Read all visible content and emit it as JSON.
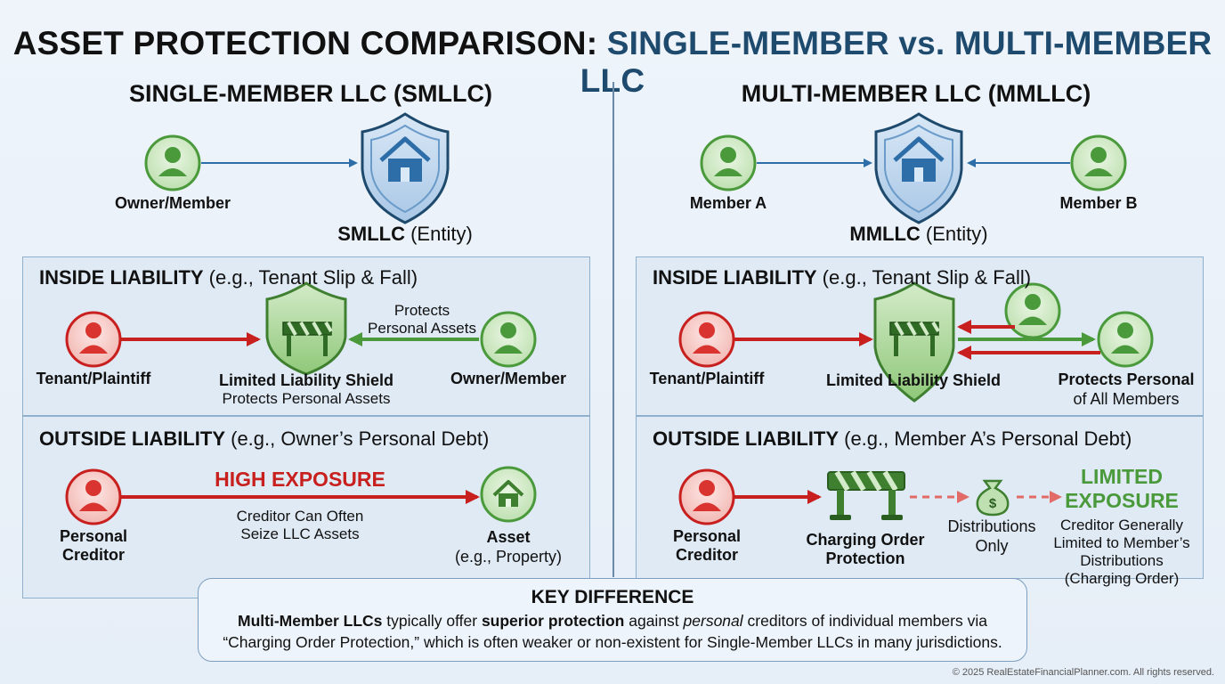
{
  "title": {
    "part1": "ASSET PROTECTION COMPARISON:",
    "part2": "SINGLE-MEMBER vs. MULTI-MEMBER LLC"
  },
  "smllc": {
    "heading": "SINGLE-MEMBER LLC (SMLLC)",
    "owner_label": "Owner/Member",
    "entity_bold": "SMLLC",
    "entity_rest": " (Entity)",
    "inside": {
      "title_bold": "INSIDE LIABILITY",
      "title_rest": " (e.g., Tenant Slip & Fall)",
      "plaintiff_label": "Tenant/Plaintiff",
      "shield_label": "Limited Liability Shield",
      "shield_sub": "Protects Personal Assets",
      "owner_label": "Owner/Member",
      "arrow_note_line1": "Protects",
      "arrow_note_line2": "Personal Assets"
    },
    "outside": {
      "title_bold": "OUTSIDE LIABILITY",
      "title_rest": " (e.g., Owner’s Personal Debt)",
      "creditor_line1": "Personal",
      "creditor_line2": "Creditor",
      "exposure": "HIGH EXPOSURE",
      "note_line1": "Creditor Can Often",
      "note_line2": "Seize LLC Assets",
      "asset_label": "Asset",
      "asset_sub": "(e.g., Property)"
    }
  },
  "mmllc": {
    "heading": "MULTI-MEMBER LLC (MMLLC)",
    "member_a": "Member A",
    "member_b": "Member B",
    "entity_bold": "MMLLC",
    "entity_rest": " (Entity)",
    "inside": {
      "title_bold": "INSIDE LIABILITY",
      "title_rest": " (e.g., Tenant Slip & Fall)",
      "plaintiff_label": "Tenant/Plaintiff",
      "shield_label": "Limited Liability Shield",
      "protects_line1": "Protects Personal",
      "protects_line2": "of All Members"
    },
    "outside": {
      "title_bold": "OUTSIDE LIABILITY",
      "title_rest": " (e.g., Member A’s Personal Debt)",
      "creditor_line1": "Personal",
      "creditor_line2": "Creditor",
      "charging_line1": "Charging Order",
      "charging_line2": "Protection",
      "dist_line1": "Distributions",
      "dist_line2": "Only",
      "exposure_line1": "LIMITED",
      "exposure_line2": "EXPOSURE",
      "note_line1": "Creditor Generally",
      "note_line2": "Limited to Member’s",
      "note_line3": "Distributions",
      "note_line4": "(Charging Order)"
    }
  },
  "key": {
    "title": "KEY DIFFERENCE",
    "l1_a": "Multi-Member LLCs",
    "l1_b": " typically offer ",
    "l1_c": "superior protection",
    "l1_d": " against ",
    "l1_e": "personal",
    "l1_f": " creditors of individual members via",
    "l2": "“Charging Order Protection,” which is often weaker or non-existent for Single-Member LLCs in many jurisdictions."
  },
  "copyright": "© 2025 RealEstateFinancialPlanner.com. All rights reserved.",
  "colors": {
    "accent": "#1e4a6e",
    "red": "#c8201e",
    "green": "#4a9a3c",
    "blue": "#2e6ea8"
  },
  "icons": [
    "person-icon",
    "shield-house-icon",
    "shield-barricade-icon",
    "barricade-icon",
    "money-bag-icon",
    "house-icon"
  ]
}
